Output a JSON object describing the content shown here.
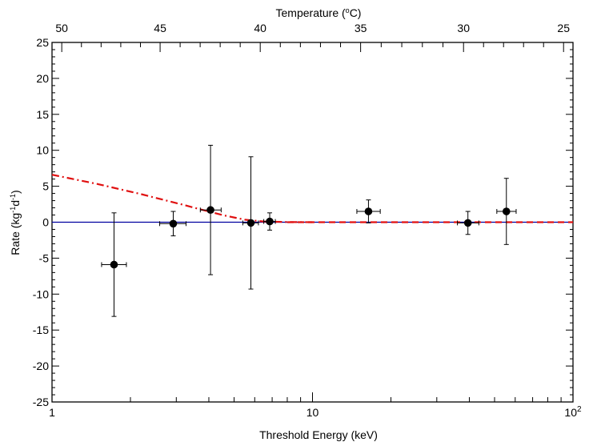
{
  "chart_data": {
    "type": "scatter",
    "xlabel": "Threshold Energy (keV)",
    "x2label_main": "Temperature (",
    "x2label_unit": "C)",
    "x2label_degree": "o",
    "ylabel_main": "Rate (kg",
    "ylabel_mid": "d",
    "ylabel_end": ")",
    "ylabel_exp1": "-1",
    "ylabel_exp2": "-1",
    "xscale": "log",
    "xlim": [
      1,
      100
    ],
    "ylim": [
      -25,
      25
    ],
    "x_ticks": [
      {
        "value": 1,
        "label": "1",
        "sup": ""
      },
      {
        "value": 10,
        "label": "10",
        "sup": ""
      },
      {
        "value": 100,
        "label": "10",
        "sup": "2"
      }
    ],
    "y_ticks": [
      -25,
      -20,
      -15,
      -10,
      -5,
      0,
      5,
      10,
      15,
      20,
      25
    ],
    "y_tick_labels": [
      "-25",
      "-20",
      "-15",
      "-10",
      "-5",
      "0",
      "5",
      "10",
      "15",
      "20",
      "25"
    ],
    "top_axis_ticks": [
      {
        "label": "50",
        "x_pos": 1.09
      },
      {
        "label": "45",
        "x_pos": 2.6
      },
      {
        "label": "40",
        "x_pos": 6.3
      },
      {
        "label": "35",
        "x_pos": 15.3
      },
      {
        "label": "30",
        "x_pos": 38
      },
      {
        "label": "25",
        "x_pos": 92
      }
    ],
    "points": [
      {
        "x": 1.73,
        "y": -5.9,
        "xerr_lo": 0.18,
        "xerr_hi": 0.2,
        "yerr": 7.2
      },
      {
        "x": 2.92,
        "y": -0.2,
        "xerr_lo": 0.33,
        "xerr_hi": 0.35,
        "yerr": 1.7
      },
      {
        "x": 4.06,
        "y": 1.7,
        "xerr_lo": 0.35,
        "xerr_hi": 0.4,
        "yerr": 9.0
      },
      {
        "x": 5.8,
        "y": -0.1,
        "xerr_lo": 0.4,
        "xerr_hi": 0.4,
        "yerr": 9.2
      },
      {
        "x": 6.85,
        "y": 0.1,
        "xerr_lo": 0.35,
        "xerr_hi": 0.35,
        "yerr": 1.2
      },
      {
        "x": 16.4,
        "y": 1.5,
        "xerr_lo": 1.6,
        "xerr_hi": 1.8,
        "yerr": 1.6
      },
      {
        "x": 39.5,
        "y": -0.1,
        "xerr_lo": 3.5,
        "xerr_hi": 4.0,
        "yerr": 1.6
      },
      {
        "x": 55.5,
        "y": 1.5,
        "xerr_lo": 4.5,
        "xerr_hi": 5.0,
        "yerr": 4.6
      }
    ],
    "lines": [
      {
        "style": "solid",
        "color": "#0000a0",
        "x": [
          1,
          100
        ],
        "y": [
          0,
          0
        ]
      },
      {
        "style": "dash-dot",
        "color": "#e01010",
        "x": [
          1,
          1.5,
          2.2,
          3.2,
          4.5,
          5.5,
          6.5,
          8,
          10
        ],
        "y": [
          6.6,
          5.3,
          3.9,
          2.4,
          1.0,
          0.35,
          0.1,
          0.02,
          0.0
        ]
      },
      {
        "style": "dashed",
        "color": "#e01010",
        "x": [
          8,
          100
        ],
        "y": [
          0,
          0
        ]
      }
    ]
  }
}
